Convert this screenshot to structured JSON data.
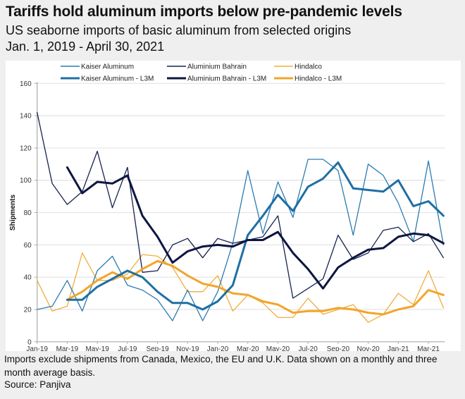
{
  "header": {
    "title": "Tariffs hold aluminum imports below pre-pandemic levels",
    "subtitle": "US seaborne imports of basic aluminum from selected origins",
    "date_range": "Jan. 1, 2019 - April 30, 2021"
  },
  "footer": {
    "note": "Imports exclude shipments from Canada, Mexico, the EU and U.K. Data shown on a monthly and three month average basis.",
    "source": "Source: Panjiva"
  },
  "chart_data": {
    "type": "line",
    "title": "Tariffs hold aluminum imports below pre-pandemic levels",
    "xlabel": "",
    "ylabel": "Shipments",
    "ylim": [
      0,
      160
    ],
    "yticks": [
      0,
      20,
      40,
      60,
      80,
      100,
      120,
      140,
      160
    ],
    "grid": true,
    "legend_position": "top",
    "x": [
      "Jan-19",
      "Feb-19",
      "Mar-19",
      "Apr-19",
      "May-19",
      "Jun-19",
      "Jul-19",
      "Aug-19",
      "Sep-19",
      "Oct-19",
      "Nov-19",
      "Dec-19",
      "Jan-20",
      "Feb-20",
      "Mar-20",
      "Apr-20",
      "May-20",
      "Jun-20",
      "Jul-20",
      "Aug-20",
      "Sep-20",
      "Oct-20",
      "Nov-20",
      "Dec-20",
      "Jan-21",
      "Feb-21",
      "Mar-21",
      "Apr-21"
    ],
    "xtick_labels": [
      "Jan-19",
      "Mar-19",
      "May-19",
      "Jul-19",
      "Sep-19",
      "Nov-19",
      "Jan-20",
      "Mar-20",
      "May-20",
      "Jul-20",
      "Sep-20",
      "Nov-20",
      "Jan-21",
      "Mar-21"
    ],
    "series": [
      {
        "name": "Kaiser Aluminum",
        "color": "#2b7bb0",
        "style": "thin",
        "values": [
          20,
          22,
          38,
          19,
          44,
          53,
          35,
          32,
          26,
          13,
          32,
          13,
          31,
          61,
          106,
          67,
          99,
          77,
          113,
          113,
          106,
          66,
          110,
          103,
          86,
          62,
          112,
          60
        ]
      },
      {
        "name": "Aluminium Bahrain",
        "color": "#16224f",
        "style": "thin",
        "values": [
          142,
          98,
          85,
          93,
          118,
          83,
          108,
          43,
          44,
          60,
          64,
          52,
          64,
          61,
          63,
          65,
          78,
          27,
          33,
          39,
          66,
          51,
          55,
          69,
          71,
          62,
          67,
          52
        ]
      },
      {
        "name": "Hindalco",
        "color": "#f0ad3c",
        "style": "thin",
        "values": [
          38,
          19,
          22,
          55,
          38,
          38,
          42,
          54,
          53,
          46,
          31,
          31,
          41,
          19,
          29,
          24,
          15,
          15,
          27,
          17,
          20,
          23,
          12,
          17,
          30,
          23,
          44,
          21
        ]
      },
      {
        "name": "Kaiser Aluminum - L3M",
        "color": "#1f6fa3",
        "style": "thick",
        "values": [
          null,
          null,
          26,
          26,
          34,
          39,
          44,
          40,
          31,
          24,
          24,
          20,
          25,
          35,
          66,
          78,
          91,
          81,
          96,
          101,
          111,
          95,
          94,
          93,
          100,
          84,
          87,
          78
        ]
      },
      {
        "name": "Aluminium Bahrain - L3M",
        "color": "#0d1640",
        "style": "thick",
        "values": [
          null,
          null,
          108,
          92,
          99,
          98,
          103,
          78,
          65,
          49,
          56,
          59,
          60,
          59,
          63,
          63,
          68,
          55,
          45,
          33,
          46,
          52,
          57,
          58,
          65,
          67,
          66,
          61
        ]
      },
      {
        "name": "Hindalco - L3M",
        "color": "#f2a52a",
        "style": "thick",
        "values": [
          null,
          null,
          26,
          31,
          38,
          43,
          39,
          45,
          50,
          47,
          41,
          36,
          34,
          30,
          29,
          25,
          23,
          18,
          19,
          19,
          21,
          20,
          18,
          17,
          20,
          22,
          32,
          29
        ]
      }
    ]
  }
}
